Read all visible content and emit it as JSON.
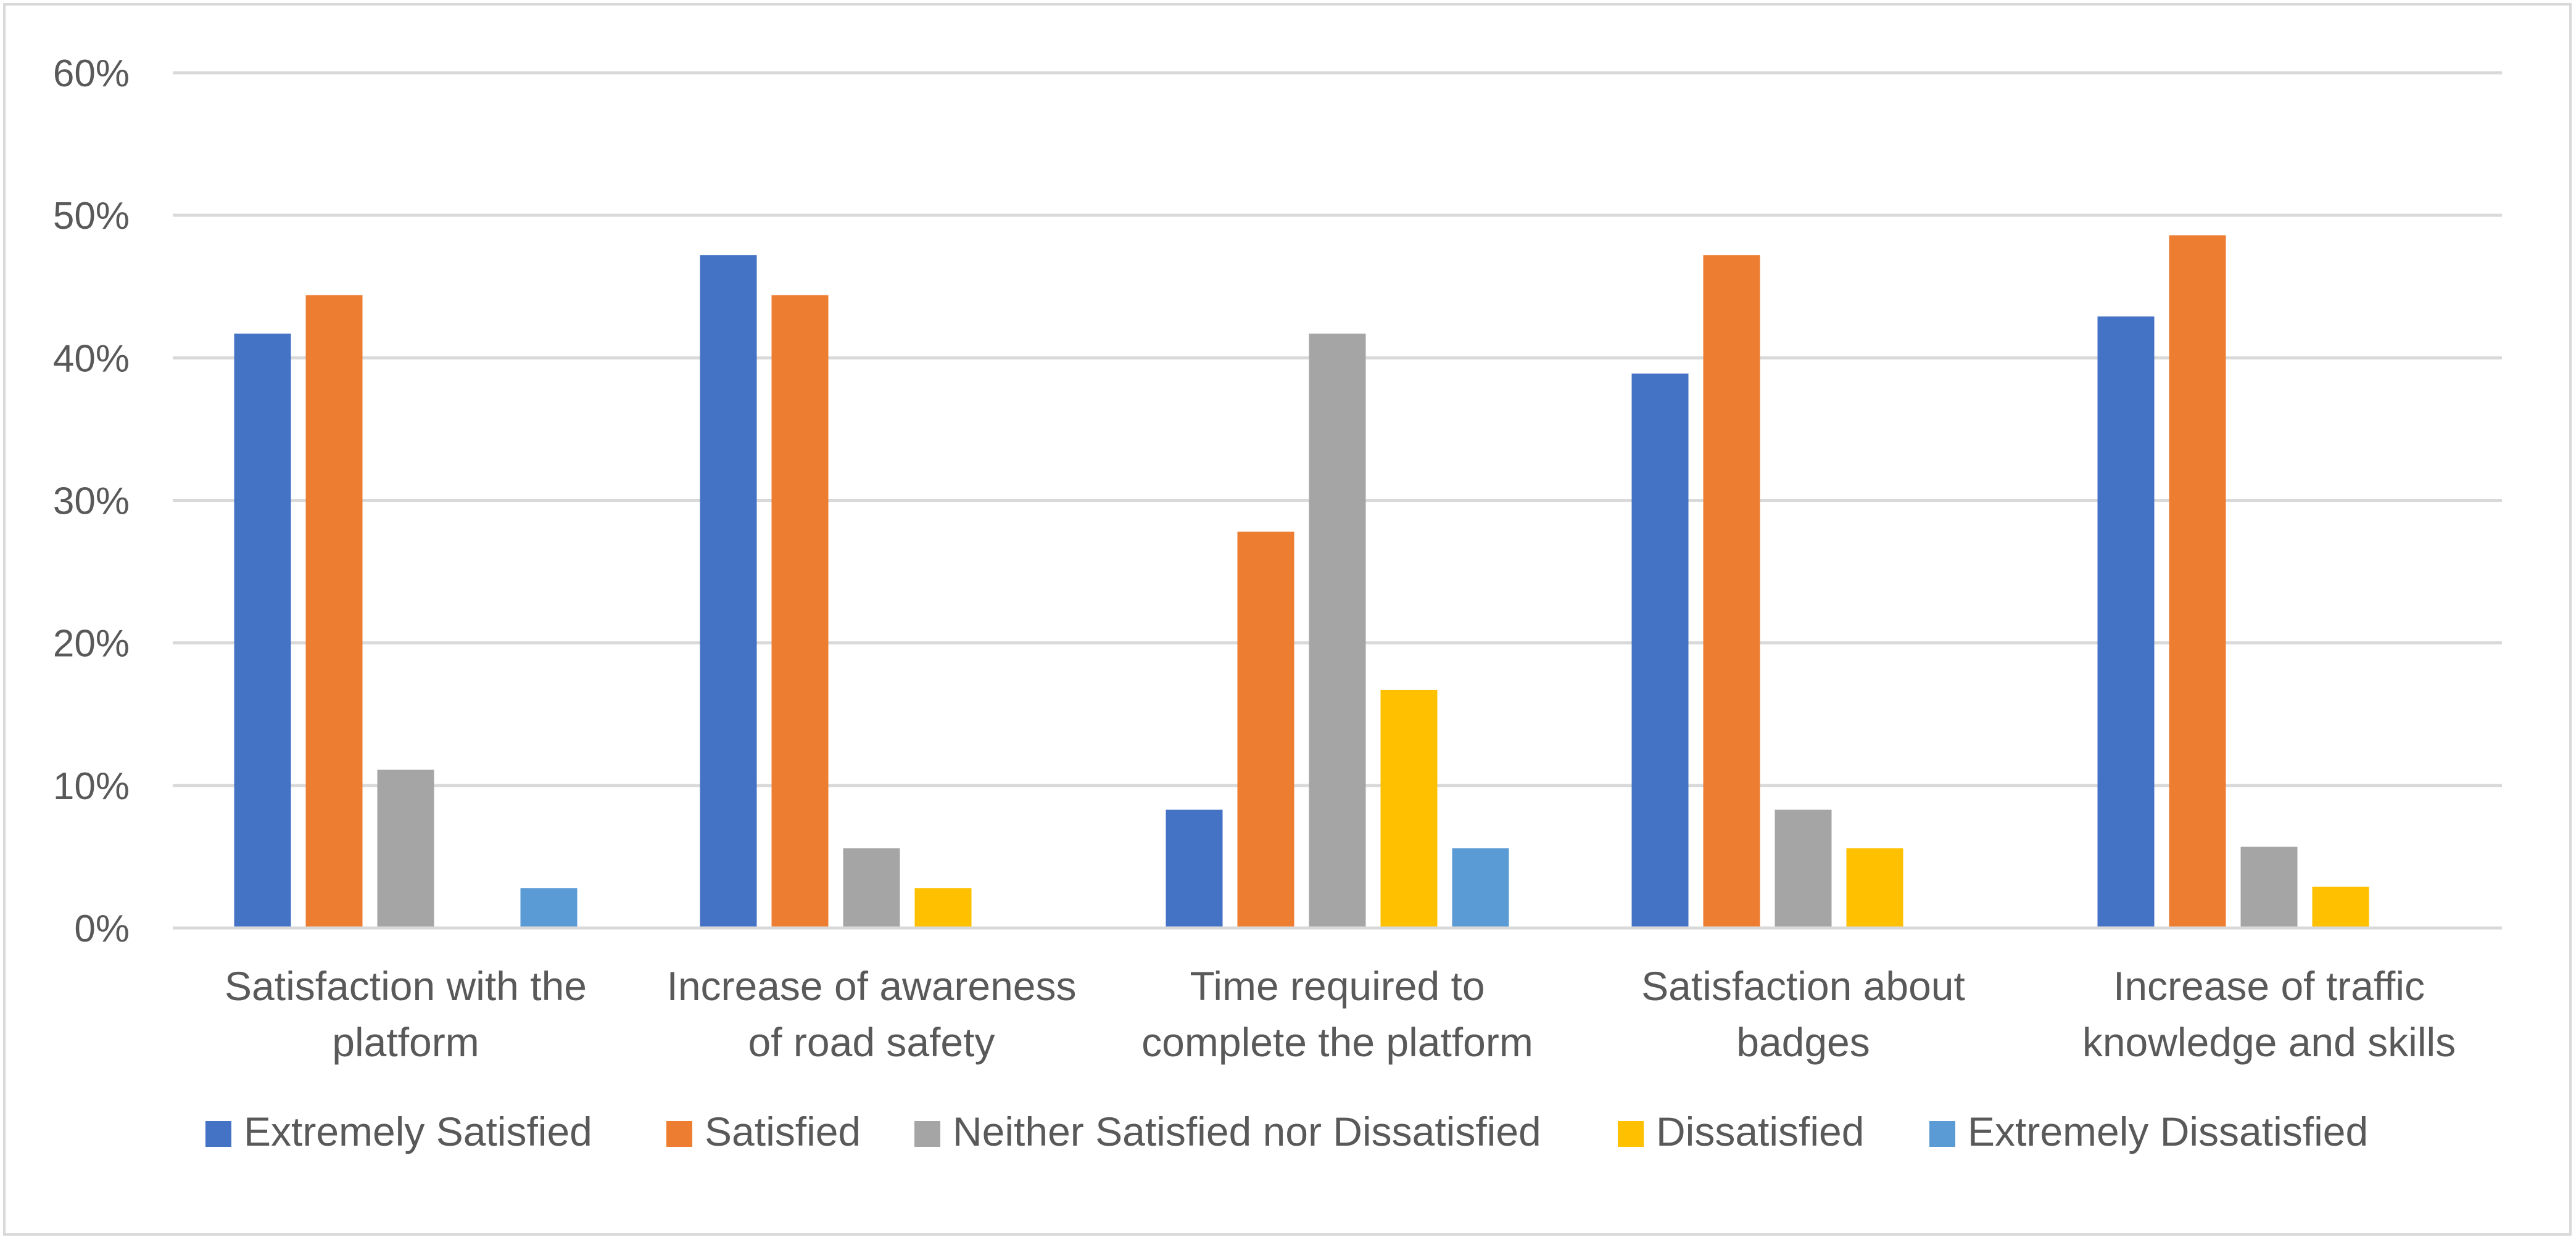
{
  "chart_data": {
    "type": "bar",
    "categories": [
      [
        "Satisfaction with the",
        "platform"
      ],
      [
        "Increase of awareness",
        "of road safety"
      ],
      [
        "Time required to",
        "complete the platform"
      ],
      [
        "Satisfaction about",
        "badges"
      ],
      [
        "Increase of traffic",
        "knowledge and skills"
      ]
    ],
    "series": [
      {
        "name": "Extremely Satisfied",
        "color": "#4472c4",
        "values": [
          41.7,
          47.2,
          8.3,
          38.9,
          42.9
        ]
      },
      {
        "name": "Satisfied",
        "color": "#ed7d31",
        "values": [
          44.4,
          44.4,
          27.8,
          47.2,
          48.6
        ]
      },
      {
        "name": "Neither Satisfied nor Dissatisfied",
        "color": "#a5a5a5",
        "values": [
          11.1,
          5.6,
          41.7,
          8.3,
          5.7
        ]
      },
      {
        "name": "Dissatisfied",
        "color": "#ffc000",
        "values": [
          0,
          2.8,
          16.7,
          5.6,
          2.9
        ]
      },
      {
        "name": "Extremely Dissatisfied",
        "color": "#5b9bd5",
        "values": [
          2.8,
          0,
          5.6,
          0,
          0
        ]
      }
    ],
    "yticks": [
      "0%",
      "10%",
      "20%",
      "30%",
      "40%",
      "50%",
      "60%"
    ],
    "ylim": [
      0,
      60
    ],
    "grid": true,
    "legend": "bottom",
    "gridline_color": "#d9d9d9"
  }
}
